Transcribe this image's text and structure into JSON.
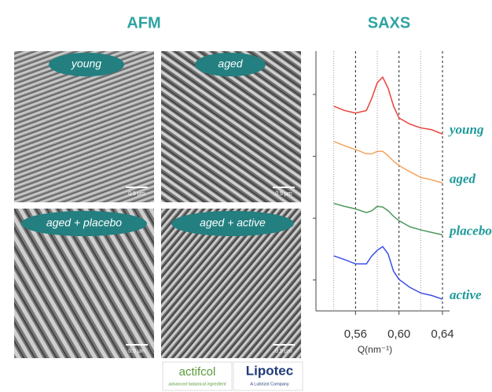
{
  "afm": {
    "title": "AFM",
    "panels": [
      {
        "label": "young",
        "scale": "0.5 µm"
      },
      {
        "label": "aged",
        "scale": "0.5 µm"
      },
      {
        "label": "aged + placebo",
        "scale": "0.5 µm"
      },
      {
        "label": "aged + active",
        "scale": "0.5 µm"
      }
    ]
  },
  "chart_data": {
    "type": "line",
    "title": "SAXS",
    "xlabel": "Q(nm⁻¹)",
    "x": [
      0.54,
      0.55,
      0.56,
      0.57,
      0.575,
      0.58,
      0.585,
      0.59,
      0.595,
      0.6,
      0.61,
      0.62,
      0.63,
      0.64
    ],
    "series": [
      {
        "name": "young",
        "color": "#e8433b",
        "values": [
          3.31,
          3.24,
          3.2,
          3.24,
          3.44,
          3.69,
          3.78,
          3.6,
          3.31,
          3.12,
          3.02,
          2.96,
          2.93,
          2.86
        ]
      },
      {
        "name": "aged",
        "color": "#f5a35c",
        "values": [
          2.74,
          2.67,
          2.61,
          2.54,
          2.54,
          2.58,
          2.58,
          2.51,
          2.42,
          2.35,
          2.25,
          2.16,
          2.12,
          2.07
        ]
      },
      {
        "name": "placebo",
        "color": "#4f9a5b",
        "values": [
          1.74,
          1.69,
          1.65,
          1.59,
          1.62,
          1.69,
          1.68,
          1.62,
          1.53,
          1.46,
          1.36,
          1.31,
          1.27,
          1.23
        ]
      },
      {
        "name": "active",
        "color": "#3b4ee8",
        "values": [
          0.89,
          0.83,
          0.76,
          0.76,
          0.89,
          0.98,
          1.04,
          0.92,
          0.64,
          0.51,
          0.38,
          0.29,
          0.25,
          0.19
        ]
      }
    ],
    "xlim": [
      0.5236,
      0.6465
    ],
    "xticks": [
      {
        "value": 0.56,
        "label": "0,56"
      },
      {
        "value": 0.6,
        "label": "0,60"
      },
      {
        "value": 0.64,
        "label": "0,64"
      }
    ],
    "xgrid": [
      0.54,
      0.56,
      0.58,
      0.6,
      0.62,
      0.64
    ],
    "ylim": [
      0,
      4.2
    ],
    "yticks": [
      0.5,
      1.5,
      2.5,
      3.5
    ],
    "label_color": "#1f9a9a"
  },
  "logos": {
    "actifcol": "actifcol",
    "actifcol_tagline": "advanced botanical ingredient",
    "lipotec": "Lipotec",
    "lipotec_tagline": "A Lubrizol Company"
  }
}
